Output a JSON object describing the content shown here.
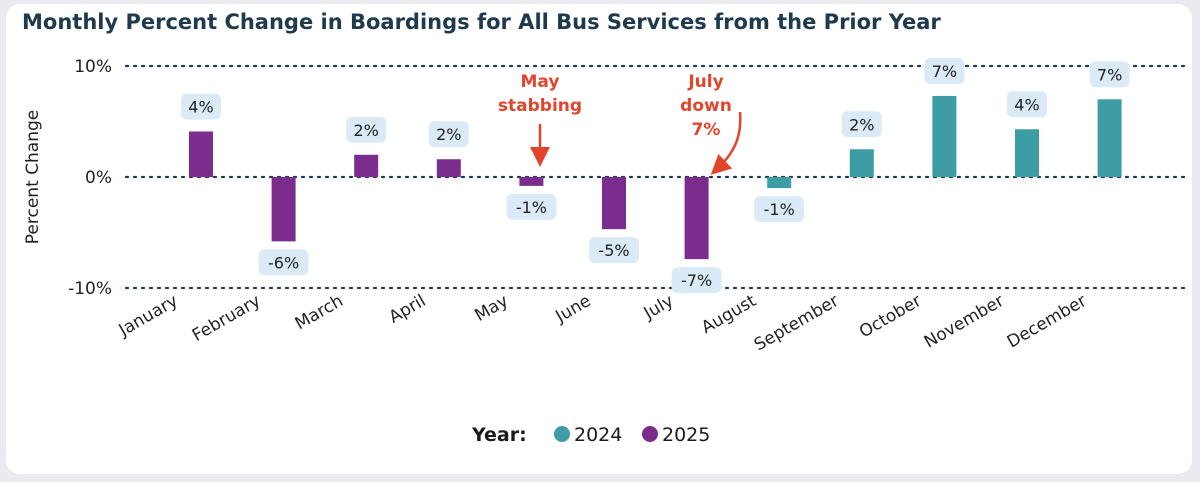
{
  "title": "Monthly Percent Change in Boardings for All Bus Services from the Prior Year",
  "colors": {
    "y2024": "#3e9ca5",
    "y2025": "#7b2d8e",
    "annotation": "#e2452b",
    "label_bg": "#dbeaf7",
    "grid": "#1f3a4d"
  },
  "chart_data": {
    "type": "bar",
    "title": "Monthly Percent Change in Boardings for All Bus Services from the Prior Year",
    "ylabel": "Percent Change",
    "xlabel": "",
    "ylim": [
      -10,
      10
    ],
    "yticks": [
      10,
      0,
      -10
    ],
    "ytick_labels": [
      "10%",
      "0%",
      "-10%"
    ],
    "grid": true,
    "categories": [
      "January",
      "February",
      "March",
      "April",
      "May",
      "June",
      "July",
      "August",
      "September",
      "October",
      "November",
      "December"
    ],
    "values": [
      4.1,
      -5.8,
      2.0,
      1.6,
      -0.8,
      -4.7,
      -7.4,
      -1.0,
      2.5,
      7.3,
      4.3,
      7.0
    ],
    "value_labels": [
      "4%",
      "-6%",
      "2%",
      "2%",
      "-1%",
      "-5%",
      "-7%",
      "-1%",
      "2%",
      "7%",
      "4%",
      "7%"
    ],
    "year": [
      "2025",
      "2025",
      "2025",
      "2025",
      "2025",
      "2025",
      "2025",
      "2024",
      "2024",
      "2024",
      "2024",
      "2024"
    ],
    "legend": {
      "title": "Year:",
      "entries": [
        "2024",
        "2025"
      ],
      "placement": "bottom"
    },
    "annotations": [
      {
        "category": "May",
        "lines": [
          "May",
          "stabbing"
        ]
      },
      {
        "category": "July",
        "lines": [
          "July",
          "down",
          "7%"
        ]
      }
    ]
  }
}
